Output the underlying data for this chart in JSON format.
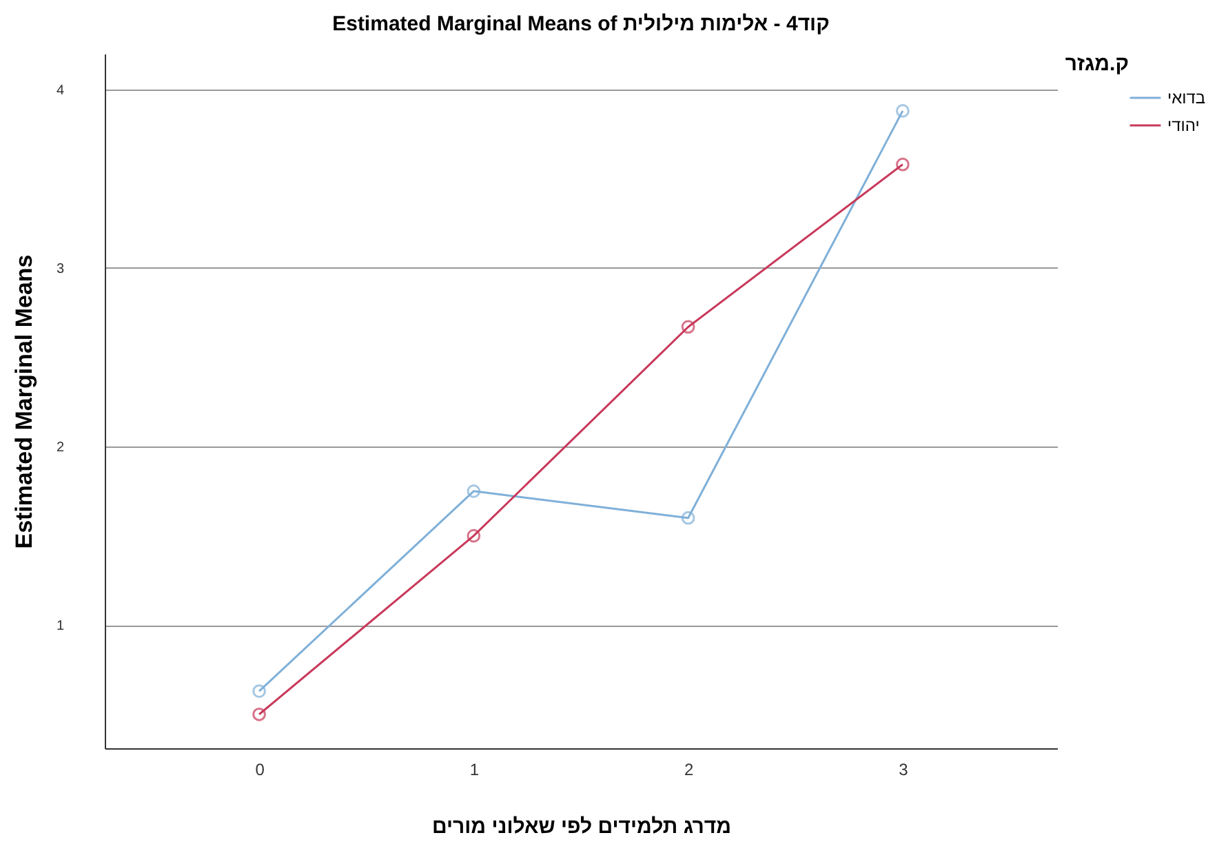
{
  "chart_data": {
    "type": "line",
    "title": "Estimated Marginal Means of קוד4 - אלימות מילולית",
    "xlabel": "מדרג תלמידים לפי שאלוני מורים",
    "ylabel": "Estimated Marginal Means",
    "legend_title": "ק.מגזר",
    "categories": [
      "0",
      "1",
      "2",
      "3"
    ],
    "series": [
      {
        "name": "בדואי",
        "color": "#7fb0d8",
        "values": [
          0.63,
          1.75,
          1.6,
          3.88
        ]
      },
      {
        "name": "יהודי",
        "color": "#c8385a",
        "values": [
          0.5,
          1.5,
          2.67,
          3.58
        ]
      }
    ],
    "ylim": [
      0.31,
      4.2
    ],
    "yticks": [
      1,
      2,
      3,
      4
    ],
    "grid": "y",
    "legend": "top right",
    "marker": "circle",
    "line_style": "solid"
  }
}
